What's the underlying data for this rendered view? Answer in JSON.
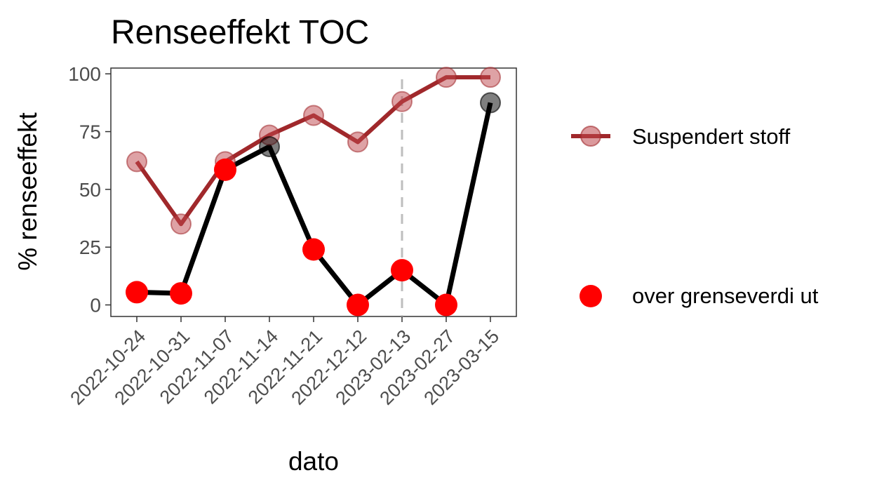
{
  "chart_data": {
    "type": "line",
    "title": "Renseeffekt TOC",
    "xlabel": "dato",
    "ylabel": "% renseeffekt",
    "categories": [
      "2022-10-24",
      "2022-10-31",
      "2022-11-07",
      "2022-11-14",
      "2022-11-21",
      "2022-12-12",
      "2023-02-13",
      "2023-02-27",
      "2023-03-15"
    ],
    "ylim": [
      -5,
      102.5
    ],
    "yticks": [
      0,
      25,
      50,
      75,
      100
    ],
    "ytick_labels": [
      "0",
      "25",
      "50",
      "75",
      "100"
    ],
    "grid": false,
    "legend_position": "right",
    "series": [
      {
        "name": "Suspendert stoff",
        "color": "#a0282b",
        "values": [
          62,
          35,
          62,
          73.5,
          82,
          70.5,
          88,
          98.5,
          98.5
        ]
      },
      {
        "color": "#000000",
        "values": [
          5.5,
          5,
          58.5,
          68.5,
          24,
          0,
          15,
          0,
          87.5
        ]
      }
    ],
    "highlight": {
      "name": "over grenseverdi ut",
      "color": "#ff0000",
      "categories": [
        "2022-10-24",
        "2022-10-31",
        "2022-11-07",
        "2022-11-21",
        "2022-12-12",
        "2023-02-13",
        "2023-02-27"
      ],
      "values": [
        5.5,
        5,
        58.5,
        24,
        0,
        15,
        0
      ]
    },
    "reference_line": {
      "x": "2023-02-13",
      "style": "dashed",
      "color": "#bebebe"
    }
  }
}
